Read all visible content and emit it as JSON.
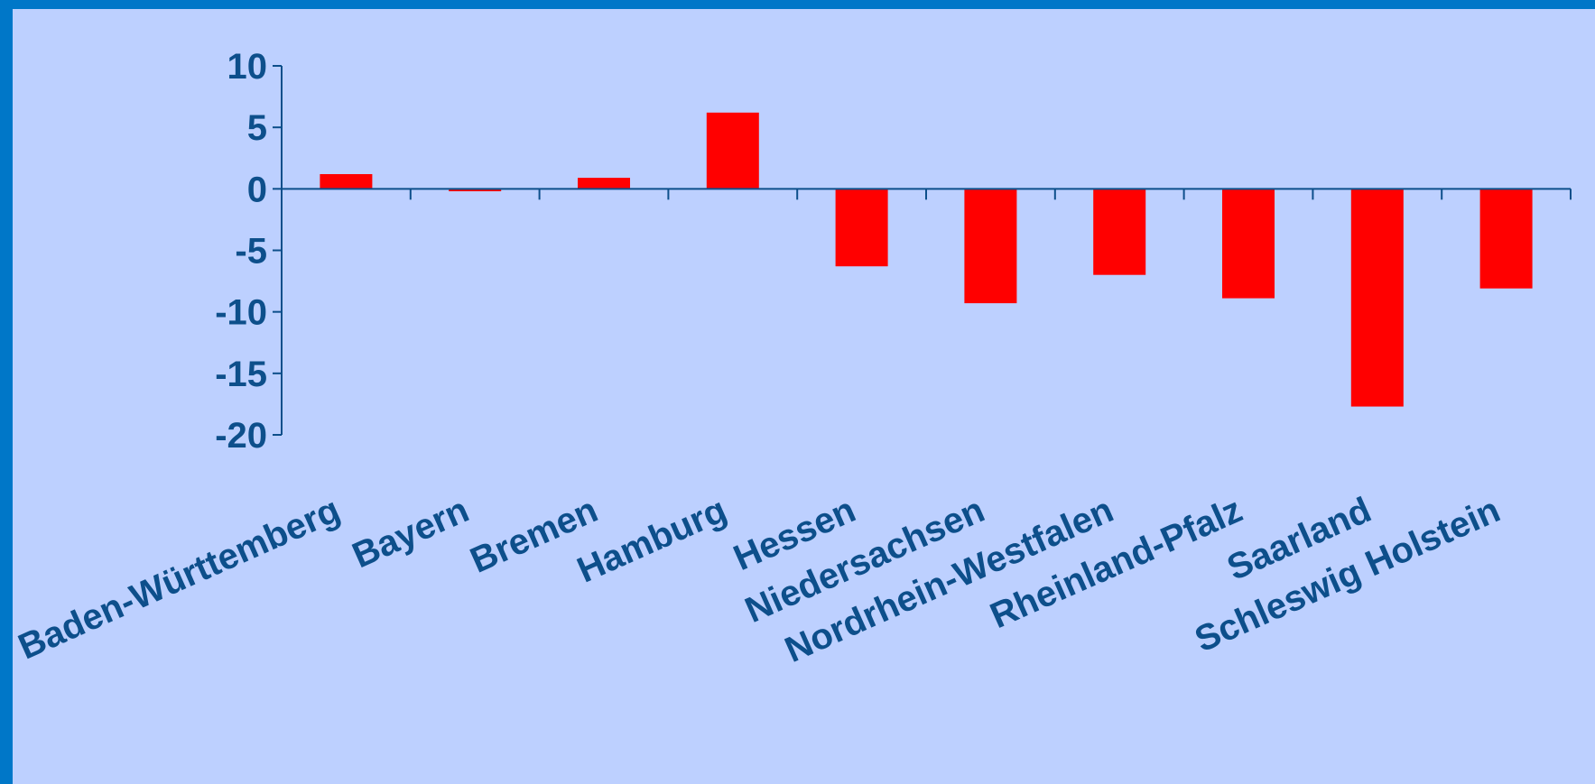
{
  "chart_data": {
    "type": "bar",
    "categories": [
      "Baden-Württemberg",
      "Bayern",
      "Bremen",
      "Hamburg",
      "Hessen",
      "Niedersachsen",
      "Nordrhein-Westfalen",
      "Rheinland-Pfalz",
      "Saarland",
      "Schleswig Holstein"
    ],
    "values": [
      1.2,
      -0.2,
      0.9,
      6.2,
      -6.3,
      -9.3,
      -7.0,
      -8.9,
      -17.7,
      -8.1
    ],
    "ylim": [
      -20,
      10
    ],
    "yticks": [
      10,
      5,
      0,
      -5,
      -10,
      -15,
      -20
    ],
    "grid": false,
    "colors": {
      "bar": "#ff0000",
      "axis": "#0d4f8b",
      "background": "#bdd0ff",
      "border": "#0077c8"
    }
  }
}
